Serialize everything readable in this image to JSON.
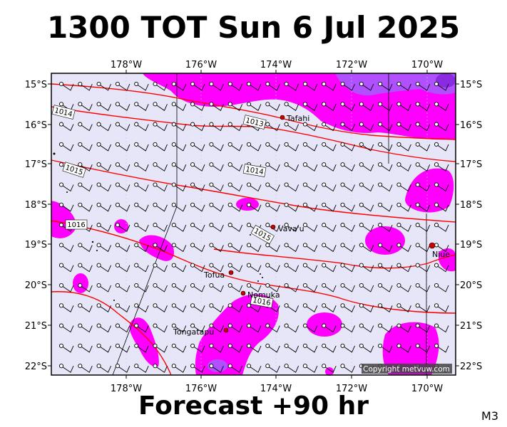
{
  "title": "1300 TOT Sun 6 Jul 2025",
  "footer": "Forecast +90 hr",
  "model_label": "M3",
  "copyright": "Copyright metvuw.com",
  "axes": {
    "lon_labels": [
      "178°W",
      "176°W",
      "174°W",
      "172°W",
      "170°W"
    ],
    "lat_labels": [
      "15°S",
      "16°S",
      "17°S",
      "18°S",
      "19°S",
      "20°S",
      "21°S",
      "22°S"
    ]
  },
  "isobars": [
    {
      "label": "1014",
      "value": 1014
    },
    {
      "label": "1013",
      "value": 1013
    },
    {
      "label": "1014",
      "value": 1014
    },
    {
      "label": "1015",
      "value": 1015
    },
    {
      "label": "1016",
      "value": 1016
    },
    {
      "label": "1015",
      "value": 1015
    },
    {
      "label": "1016",
      "value": 1016
    }
  ],
  "places": [
    {
      "name": "Tafahi"
    },
    {
      "name": "Vava'u"
    },
    {
      "name": "Tofua"
    },
    {
      "name": "Nomuka"
    },
    {
      "name": "Tongatapu"
    },
    {
      "name": "Niue"
    }
  ],
  "colors": {
    "background": "#e6e6f8",
    "rain_light": "#ff00ff",
    "rain_heavy": "#9b30ff",
    "isobar": "#ff0000",
    "frame": "#000000"
  }
}
